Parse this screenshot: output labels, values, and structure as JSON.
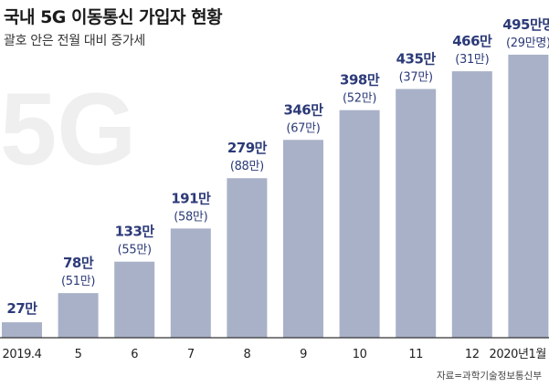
{
  "header": {
    "title": "국내 5G 이동통신 가입자 현황",
    "subtitle": "괄호 안은 전월 대비 증가세"
  },
  "watermark": "5G",
  "source": "자료=과학기술정보통신부",
  "colors": {
    "bar": "#a9b1c8",
    "value_label": "#2c3a78",
    "delta_label": "#2c3a78",
    "axis": "#333333",
    "watermark": "#efefef"
  },
  "chart_data": {
    "type": "bar",
    "title": "국내 5G 이동통신 가입자 현황",
    "subtitle": "괄호 안은 전월 대비 증가세",
    "categories": [
      "2019.4",
      "5",
      "6",
      "7",
      "8",
      "9",
      "10",
      "11",
      "12",
      "2020년1월"
    ],
    "values": [
      27,
      78,
      133,
      191,
      279,
      346,
      398,
      435,
      466,
      495
    ],
    "value_labels": [
      "27만",
      "78만",
      "133만",
      "191만",
      "279만",
      "346만",
      "398만",
      "435만",
      "466만",
      "495만명"
    ],
    "delta_labels": [
      "",
      "(51만)",
      "(55만)",
      "(58만)",
      "(88만)",
      "(67만)",
      "(52만)",
      "(37만)",
      "(31만)",
      "(29만명)"
    ],
    "unit": "만명",
    "ylim": [
      0,
      530
    ],
    "grid": false,
    "legend": "none"
  }
}
